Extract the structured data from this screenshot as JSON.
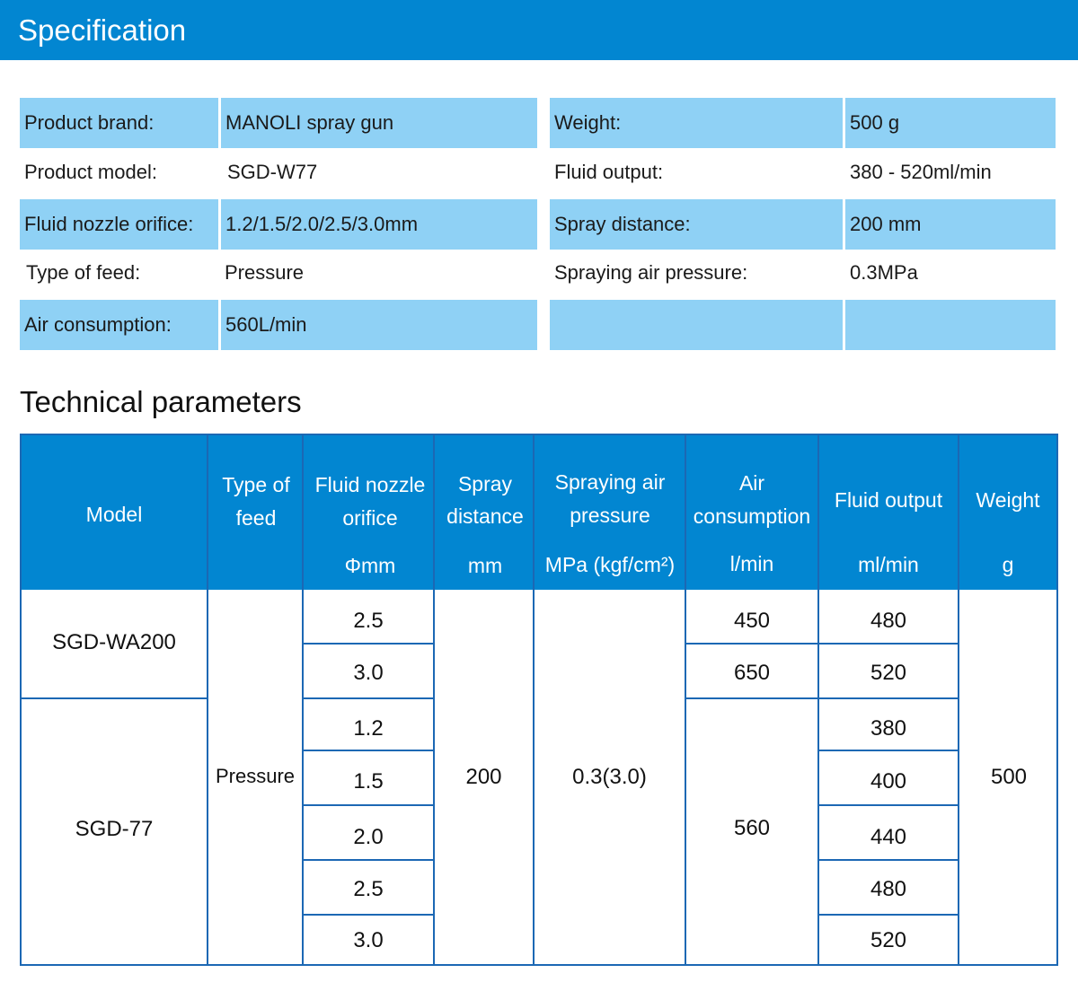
{
  "banner": {
    "title": "Specification"
  },
  "spec": {
    "rows": [
      {
        "label_left": "Product brand:",
        "value_left": "MANOLI spray gun",
        "label_right": "Weight:",
        "value_right": "500 g"
      },
      {
        "label_left": "Product model:",
        "value_left": "SGD-W77",
        "label_right": "Fluid output:",
        "value_right": "380 - 520ml/min"
      },
      {
        "label_left": "Fluid nozzle orifice:",
        "value_left": "1.2/1.5/2.0/2.5/3.0mm",
        "label_right": "Spray distance:",
        "value_right": "200 mm"
      },
      {
        "label_left": "Type of feed:",
        "value_left": "Pressure",
        "label_right": "Spraying air pressure:",
        "value_right": "0.3MPa"
      },
      {
        "label_left": "Air consumption:",
        "value_left": "560L/min",
        "label_right": "",
        "value_right": ""
      }
    ]
  },
  "tech": {
    "title": "Technical parameters",
    "headers": {
      "model": "Model",
      "feed_1": "Type of",
      "feed_2": "feed",
      "nozzle_1": "Fluid nozzle",
      "nozzle_2": "orifice",
      "nozzle_unit": "Φmm",
      "distance_1": "Spray",
      "distance_2": "distance",
      "distance_unit": "mm",
      "pressure_1": "Spraying air",
      "pressure_2": "pressure",
      "pressure_unit": "MPa (kgf/cm²)",
      "air_1": "Air",
      "air_2": "consumption",
      "air_unit": "l/min",
      "fluid_1": "Fluid output",
      "fluid_unit": "ml/min",
      "weight_1": "Weight",
      "weight_unit": "g"
    },
    "models": [
      "SGD-WA200",
      "SGD-77"
    ],
    "feed": "Pressure",
    "nozzles": [
      "2.5",
      "3.0",
      "1.2",
      "1.5",
      "2.0",
      "2.5",
      "3.0"
    ],
    "distance": "200",
    "pressure": "0.3(3.0)",
    "air": [
      "450",
      "650",
      "560"
    ],
    "fluid": [
      "480",
      "520",
      "380",
      "400",
      "440",
      "480",
      "520"
    ],
    "weight": "500"
  }
}
